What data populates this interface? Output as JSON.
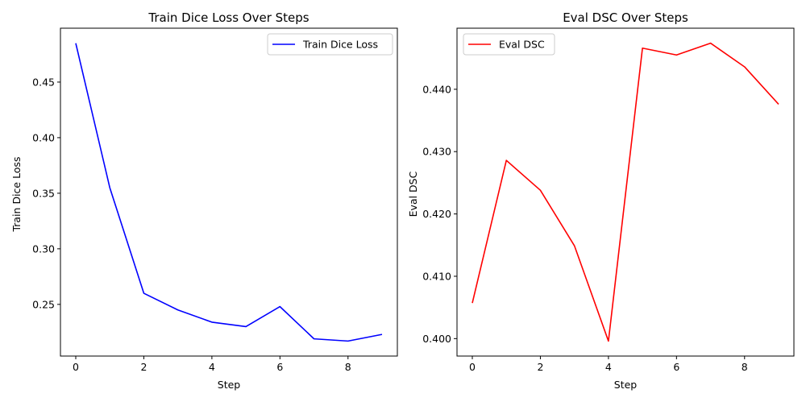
{
  "chart_data": [
    {
      "type": "line",
      "title": "Train Dice Loss Over Steps",
      "xlabel": "Step",
      "ylabel": "Train Dice Loss",
      "xlim": [
        -0.45,
        9.45
      ],
      "ylim": [
        0.2035,
        0.4985
      ],
      "xticks": [
        0,
        2,
        4,
        6,
        8
      ],
      "yticks": [
        0.25,
        0.3,
        0.35,
        0.4,
        0.45
      ],
      "xtick_labels": [
        "0",
        "2",
        "4",
        "6",
        "8"
      ],
      "ytick_labels": [
        "0.25",
        "0.30",
        "0.35",
        "0.40",
        "0.45"
      ],
      "legend": "top-right",
      "grid": false,
      "series": [
        {
          "name": "Train Dice Loss",
          "color": "#0000ff",
          "x": [
            0,
            1,
            2,
            3,
            4,
            5,
            6,
            7,
            8,
            9
          ],
          "y": [
            0.485,
            0.355,
            0.26,
            0.245,
            0.234,
            0.23,
            0.248,
            0.219,
            0.217,
            0.223
          ]
        }
      ]
    },
    {
      "type": "line",
      "title": "Eval DSC Over Steps",
      "xlabel": "Step",
      "ylabel": "Eval DSC",
      "xlim": [
        -0.45,
        9.45
      ],
      "ylim": [
        0.3972,
        0.4498
      ],
      "xticks": [
        0,
        2,
        4,
        6,
        8
      ],
      "yticks": [
        0.4,
        0.41,
        0.42,
        0.43,
        0.44
      ],
      "xtick_labels": [
        "0",
        "2",
        "4",
        "6",
        "8"
      ],
      "ytick_labels": [
        "0.400",
        "0.410",
        "0.420",
        "0.430",
        "0.440"
      ],
      "legend": "top-left",
      "grid": false,
      "series": [
        {
          "name": "Eval DSC",
          "color": "#ff0000",
          "x": [
            0,
            1,
            2,
            3,
            4,
            5,
            6,
            7,
            8,
            9
          ],
          "y": [
            0.4057,
            0.4286,
            0.4238,
            0.4149,
            0.3996,
            0.4466,
            0.4455,
            0.4474,
            0.4436,
            0.4376
          ]
        }
      ]
    }
  ]
}
